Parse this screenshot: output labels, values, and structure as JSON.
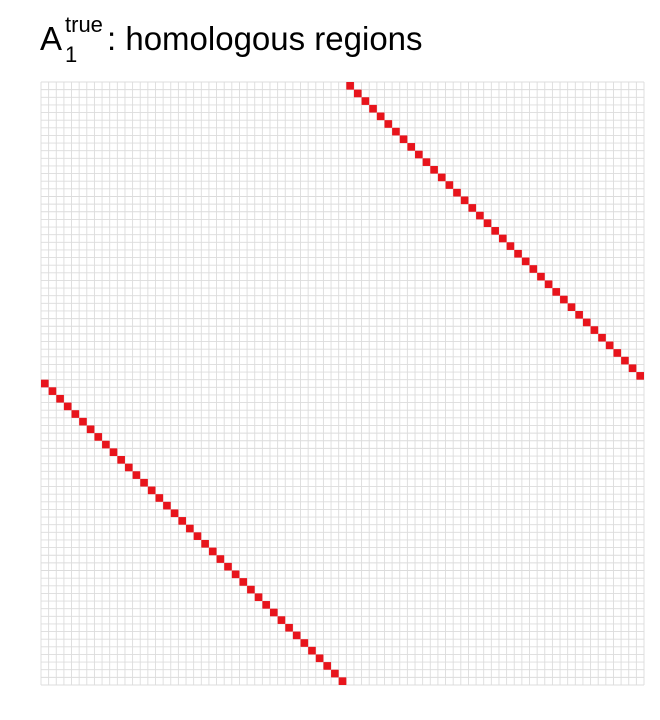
{
  "chart_data": {
    "type": "heatmap",
    "title": {
      "base": "A",
      "superscript": "true",
      "subscript": "1",
      "rest": ": homologous regions"
    },
    "xlabel": "",
    "ylabel": "",
    "rows": 79,
    "cols": 79,
    "grid": true,
    "colors": {
      "cell_off": "#ffffff",
      "grid_line": "#dcdcdc",
      "cell_on": "#e8141c"
    },
    "values_on": 1,
    "values_off": 0,
    "highlighted_diagonals": [
      {
        "name": "upper-diagonal",
        "start_row": 0,
        "start_col": 40,
        "length": 39
      },
      {
        "name": "lower-diagonal",
        "start_row": 39,
        "start_col": 0,
        "length": 40
      }
    ]
  }
}
